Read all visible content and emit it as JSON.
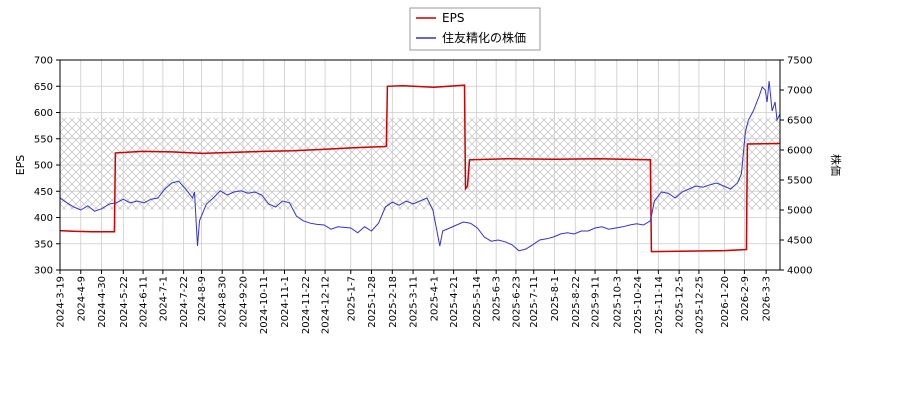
{
  "chart_data": {
    "type": "line",
    "legend": {
      "placement": "top-center",
      "entries": [
        {
          "label": "EPS",
          "color": "#cc0000"
        },
        {
          "label": "住友精化の株価",
          "color": "#3333cc"
        }
      ]
    },
    "y_left": {
      "label": "EPS",
      "lim": [
        300,
        700
      ],
      "ticks": [
        300,
        350,
        400,
        450,
        500,
        550,
        600,
        650,
        700
      ]
    },
    "y_right": {
      "label": "株価",
      "lim": [
        4000,
        7500
      ],
      "ticks": [
        4000,
        4500,
        5000,
        5500,
        6000,
        6500,
        7000,
        7500
      ]
    },
    "x": {
      "start": "2024-03-19",
      "end": "2026-03-17",
      "tick_labels": [
        "2024-3-19",
        "2024-4-9",
        "2024-4-30",
        "2024-5-22",
        "2024-6-11",
        "2024-7-1",
        "2024-7-22",
        "2024-8-9",
        "2024-8-30",
        "2024-9-20",
        "2024-10-11",
        "2024-11-1",
        "2024-11-22",
        "2024-12-12",
        "2025-1-7",
        "2025-1-28",
        "2025-2-18",
        "2025-3-11",
        "2025-4-1",
        "2025-4-21",
        "2025-5-14",
        "2025-6-3",
        "2025-6-23",
        "2025-7-11",
        "2025-8-1",
        "2025-8-22",
        "2025-9-11",
        "2025-10-3",
        "2025-10-24",
        "2025-11-14",
        "2025-12-5",
        "2025-12-25",
        "2026-1-20",
        "2026-2-9",
        "2026-3-3"
      ]
    },
    "grid": true,
    "shaded_band": {
      "axis": "left",
      "from": 415,
      "to": 590,
      "pattern": "crosshatch"
    },
    "series": [
      {
        "name": "EPS",
        "axis": "left",
        "color": "#cc0000",
        "points": [
          [
            "2024-03-19",
            375
          ],
          [
            "2024-04-01",
            374
          ],
          [
            "2024-04-20",
            373
          ],
          [
            "2024-05-13",
            373
          ],
          [
            "2024-05-14",
            523
          ],
          [
            "2024-06-10",
            526
          ],
          [
            "2024-07-10",
            525
          ],
          [
            "2024-08-10",
            522
          ],
          [
            "2024-09-10",
            524
          ],
          [
            "2024-10-10",
            526
          ],
          [
            "2024-11-10",
            527
          ],
          [
            "2024-12-12",
            530
          ],
          [
            "2025-01-10",
            533
          ],
          [
            "2025-02-10",
            535
          ],
          [
            "2025-02-12",
            536
          ],
          [
            "2025-02-13",
            650
          ],
          [
            "2025-03-01",
            651
          ],
          [
            "2025-04-01",
            648
          ],
          [
            "2025-05-02",
            652
          ],
          [
            "2025-05-03",
            455
          ],
          [
            "2025-05-05",
            460
          ],
          [
            "2025-05-07",
            510
          ],
          [
            "2025-06-15",
            512
          ],
          [
            "2025-08-01",
            511
          ],
          [
            "2025-09-15",
            512
          ],
          [
            "2025-11-05",
            510
          ],
          [
            "2025-11-06",
            510
          ],
          [
            "2025-11-07",
            335
          ],
          [
            "2025-12-15",
            336
          ],
          [
            "2026-01-20",
            337
          ],
          [
            "2026-02-11",
            339
          ],
          [
            "2026-02-12",
            540
          ],
          [
            "2026-03-17",
            541
          ]
        ]
      },
      {
        "name": "住友精化の株価",
        "axis": "right",
        "color": "#3333cc",
        "points": [
          [
            "2024-03-19",
            5200
          ],
          [
            "2024-03-26",
            5120
          ],
          [
            "2024-04-02",
            5050
          ],
          [
            "2024-04-09",
            5000
          ],
          [
            "2024-04-16",
            5070
          ],
          [
            "2024-04-23",
            4980
          ],
          [
            "2024-04-30",
            5020
          ],
          [
            "2024-05-08",
            5100
          ],
          [
            "2024-05-15",
            5120
          ],
          [
            "2024-05-22",
            5180
          ],
          [
            "2024-05-29",
            5120
          ],
          [
            "2024-06-05",
            5150
          ],
          [
            "2024-06-12",
            5120
          ],
          [
            "2024-06-19",
            5180
          ],
          [
            "2024-06-26",
            5200
          ],
          [
            "2024-07-03",
            5350
          ],
          [
            "2024-07-10",
            5450
          ],
          [
            "2024-07-17",
            5480
          ],
          [
            "2024-07-24",
            5350
          ],
          [
            "2024-07-31",
            5200
          ],
          [
            "2024-08-02",
            5300
          ],
          [
            "2024-08-05",
            4400
          ],
          [
            "2024-08-07",
            4820
          ],
          [
            "2024-08-14",
            5100
          ],
          [
            "2024-08-21",
            5200
          ],
          [
            "2024-08-28",
            5320
          ],
          [
            "2024-09-04",
            5250
          ],
          [
            "2024-09-11",
            5300
          ],
          [
            "2024-09-18",
            5320
          ],
          [
            "2024-09-25",
            5280
          ],
          [
            "2024-10-02",
            5300
          ],
          [
            "2024-10-09",
            5250
          ],
          [
            "2024-10-16",
            5100
          ],
          [
            "2024-10-23",
            5050
          ],
          [
            "2024-10-30",
            5150
          ],
          [
            "2024-11-06",
            5120
          ],
          [
            "2024-11-13",
            4900
          ],
          [
            "2024-11-20",
            4820
          ],
          [
            "2024-11-27",
            4780
          ],
          [
            "2024-12-04",
            4760
          ],
          [
            "2024-12-11",
            4750
          ],
          [
            "2024-12-18",
            4680
          ],
          [
            "2024-12-25",
            4720
          ],
          [
            "2025-01-07",
            4700
          ],
          [
            "2025-01-14",
            4620
          ],
          [
            "2025-01-21",
            4720
          ],
          [
            "2025-01-28",
            4650
          ],
          [
            "2025-02-04",
            4780
          ],
          [
            "2025-02-11",
            5050
          ],
          [
            "2025-02-18",
            5130
          ],
          [
            "2025-02-25",
            5080
          ],
          [
            "2025-03-04",
            5150
          ],
          [
            "2025-03-11",
            5100
          ],
          [
            "2025-03-18",
            5150
          ],
          [
            "2025-03-25",
            5200
          ],
          [
            "2025-03-31",
            5000
          ],
          [
            "2025-04-07",
            4400
          ],
          [
            "2025-04-10",
            4650
          ],
          [
            "2025-04-17",
            4700
          ],
          [
            "2025-04-24",
            4750
          ],
          [
            "2025-05-01",
            4800
          ],
          [
            "2025-05-08",
            4780
          ],
          [
            "2025-05-15",
            4700
          ],
          [
            "2025-05-22",
            4550
          ],
          [
            "2025-05-29",
            4480
          ],
          [
            "2025-06-05",
            4500
          ],
          [
            "2025-06-12",
            4470
          ],
          [
            "2025-06-19",
            4420
          ],
          [
            "2025-06-26",
            4320
          ],
          [
            "2025-07-03",
            4350
          ],
          [
            "2025-07-10",
            4420
          ],
          [
            "2025-07-17",
            4500
          ],
          [
            "2025-07-24",
            4520
          ],
          [
            "2025-07-31",
            4550
          ],
          [
            "2025-08-07",
            4600
          ],
          [
            "2025-08-14",
            4620
          ],
          [
            "2025-08-21",
            4600
          ],
          [
            "2025-08-28",
            4650
          ],
          [
            "2025-09-04",
            4650
          ],
          [
            "2025-09-11",
            4700
          ],
          [
            "2025-09-18",
            4720
          ],
          [
            "2025-09-25",
            4680
          ],
          [
            "2025-10-02",
            4700
          ],
          [
            "2025-10-09",
            4720
          ],
          [
            "2025-10-16",
            4750
          ],
          [
            "2025-10-23",
            4770
          ],
          [
            "2025-10-30",
            4750
          ],
          [
            "2025-11-06",
            4820
          ],
          [
            "2025-11-10",
            5150
          ],
          [
            "2025-11-17",
            5300
          ],
          [
            "2025-11-24",
            5280
          ],
          [
            "2025-12-01",
            5200
          ],
          [
            "2025-12-08",
            5300
          ],
          [
            "2025-12-15",
            5350
          ],
          [
            "2025-12-22",
            5400
          ],
          [
            "2025-12-29",
            5380
          ],
          [
            "2026-01-05",
            5420
          ],
          [
            "2026-01-12",
            5450
          ],
          [
            "2026-01-19",
            5400
          ],
          [
            "2026-01-26",
            5350
          ],
          [
            "2026-02-02",
            5450
          ],
          [
            "2026-02-06",
            5600
          ],
          [
            "2026-02-10",
            6300
          ],
          [
            "2026-02-13",
            6500
          ],
          [
            "2026-02-18",
            6650
          ],
          [
            "2026-02-24",
            6900
          ],
          [
            "2026-02-27",
            7050
          ],
          [
            "2026-03-02",
            7000
          ],
          [
            "2026-03-04",
            6800
          ],
          [
            "2026-03-06",
            7150
          ],
          [
            "2026-03-09",
            6650
          ],
          [
            "2026-03-12",
            6800
          ],
          [
            "2026-03-14",
            6500
          ],
          [
            "2026-03-17",
            6600
          ]
        ]
      }
    ]
  }
}
